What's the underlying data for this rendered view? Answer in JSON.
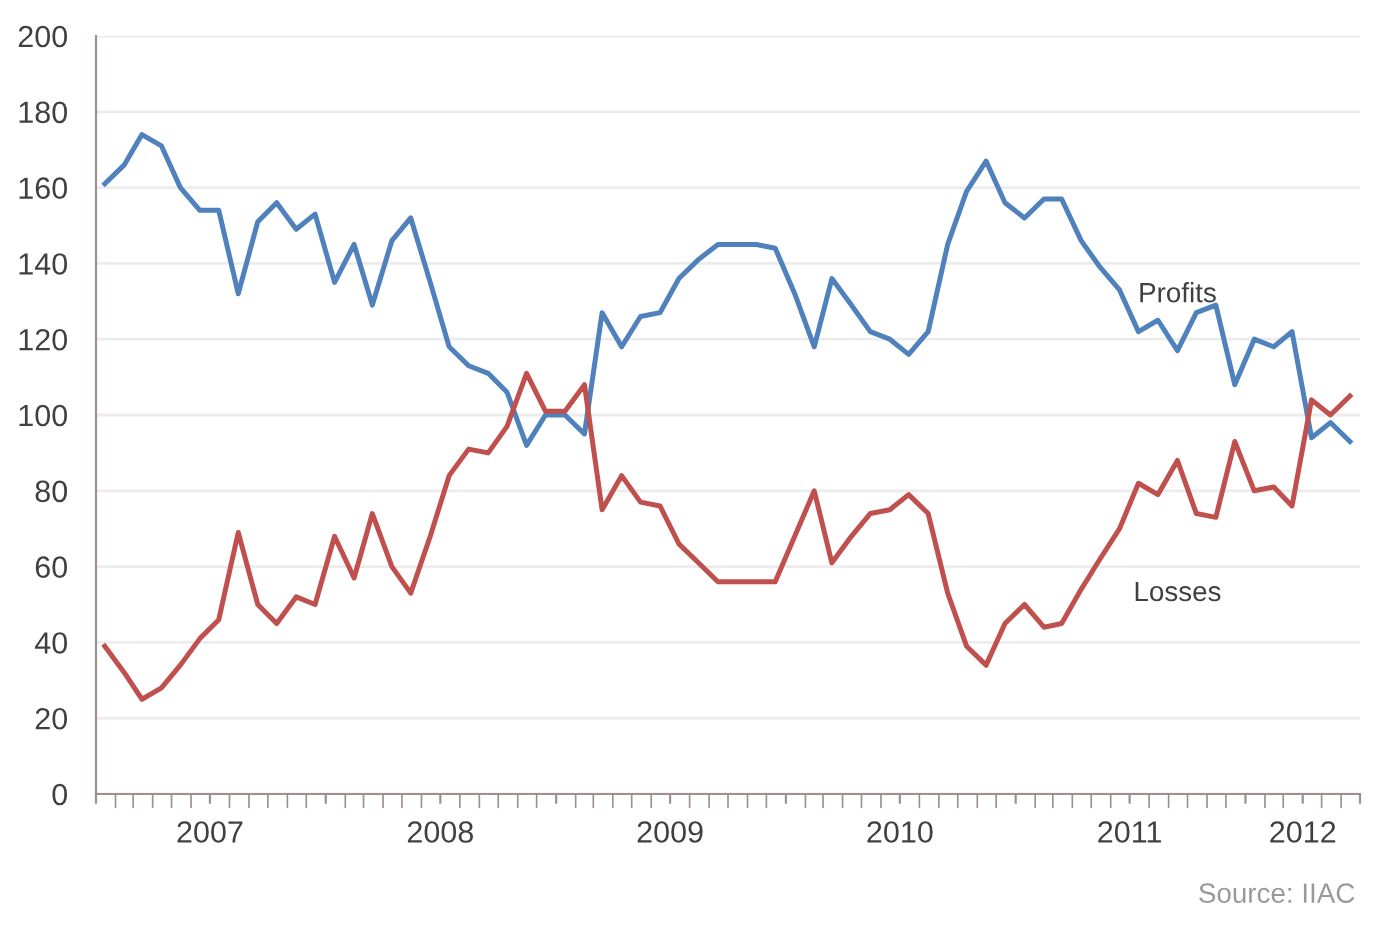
{
  "chart_data": {
    "type": "line",
    "annotations": [
      "Source: IIAC"
    ],
    "x": [
      "2007-01-15",
      "2007-02-15",
      "2007-03-15",
      "2007-04-15",
      "2007-05-15",
      "2007-06-15",
      "2007-07-15",
      "2007-08-15",
      "2007-09-15",
      "2007-10-15",
      "2007-11-15",
      "2007-12-15",
      "2008-01-15",
      "2008-02-15",
      "2008-03-15",
      "2008-04-15",
      "2008-05-15",
      "2008-06-15",
      "2008-07-15",
      "2008-08-15",
      "2008-09-15",
      "2008-10-15",
      "2008-11-15",
      "2008-12-15",
      "2009-01-15",
      "2009-02-15",
      "2009-03-15",
      "2009-04-15",
      "2009-05-15",
      "2009-06-15",
      "2009-07-15",
      "2009-08-15",
      "2009-09-15",
      "2009-10-15",
      "2009-11-15",
      "2009-12-15",
      "2010-01-15",
      "2010-02-15",
      "2010-03-15",
      "2010-04-15",
      "2010-05-15",
      "2010-06-15",
      "2010-07-15",
      "2010-08-15",
      "2010-09-15",
      "2010-10-15",
      "2010-11-15",
      "2010-12-15",
      "2011-01-15",
      "2011-02-15",
      "2011-03-15",
      "2011-04-15",
      "2011-05-15",
      "2011-06-15",
      "2011-07-15",
      "2011-08-15",
      "2011-09-15",
      "2011-10-15",
      "2011-11-15",
      "2011-12-15",
      "2012-01-15",
      "2012-02-15",
      "2012-03-15",
      "2012-04-15",
      "2012-05-15",
      "2012-06-15"
    ],
    "series": [
      {
        "name": "Profits",
        "color": "#4f81bd",
        "values": [
          161,
          166,
          174,
          171,
          160,
          154,
          154,
          132,
          151,
          156,
          149,
          153,
          135,
          145,
          129,
          146,
          152,
          135,
          118,
          113,
          111,
          106,
          92,
          100,
          100,
          95,
          127,
          118,
          126,
          127,
          136,
          141,
          145,
          145,
          145,
          144,
          132,
          118,
          136,
          129,
          122,
          120,
          116,
          122,
          145,
          159,
          167,
          156,
          152,
          157,
          157,
          146,
          139,
          133,
          122,
          125,
          117,
          127,
          129,
          108,
          120,
          118,
          122,
          94,
          98,
          93
        ]
      },
      {
        "name": "Losses",
        "color": "#c0504d",
        "values": [
          39,
          32,
          25,
          28,
          34,
          41,
          46,
          69,
          50,
          45,
          52,
          50,
          68,
          57,
          74,
          60,
          53,
          68,
          84,
          91,
          90,
          97,
          111,
          101,
          101,
          108,
          75,
          84,
          77,
          76,
          66,
          61,
          56,
          56,
          56,
          56,
          68,
          80,
          61,
          68,
          74,
          75,
          79,
          74,
          53,
          39,
          34,
          45,
          50,
          44,
          45,
          54,
          62,
          70,
          82,
          79,
          88,
          74,
          73,
          93,
          80,
          81,
          76,
          104,
          100,
          105
        ]
      }
    ],
    "ylim": [
      0,
      200
    ],
    "yticks": [
      0,
      20,
      40,
      60,
      80,
      100,
      120,
      140,
      160,
      180,
      200
    ],
    "xlim": [
      "2007-01-01",
      "2012-07-01"
    ],
    "xticks": [
      {
        "value": "2007-01-01",
        "label": null
      },
      {
        "value": "2007-07-01",
        "label": "2007"
      },
      {
        "value": "2008-01-01",
        "label": null
      },
      {
        "value": "2008-07-01",
        "label": "2008"
      },
      {
        "value": "2009-01-01",
        "label": null
      },
      {
        "value": "2009-07-01",
        "label": "2009"
      },
      {
        "value": "2010-01-01",
        "label": null
      },
      {
        "value": "2010-07-01",
        "label": "2010"
      },
      {
        "value": "2011-01-01",
        "label": null
      },
      {
        "value": "2011-07-01",
        "label": "2011"
      },
      {
        "value": "2012-01-01",
        "label": null
      },
      {
        "value": "2012-04-01",
        "label": "2012"
      },
      {
        "value": "2012-07-01",
        "label": null
      }
    ],
    "grid": "y",
    "legend": false,
    "marker": "none",
    "line_style": "solid"
  }
}
